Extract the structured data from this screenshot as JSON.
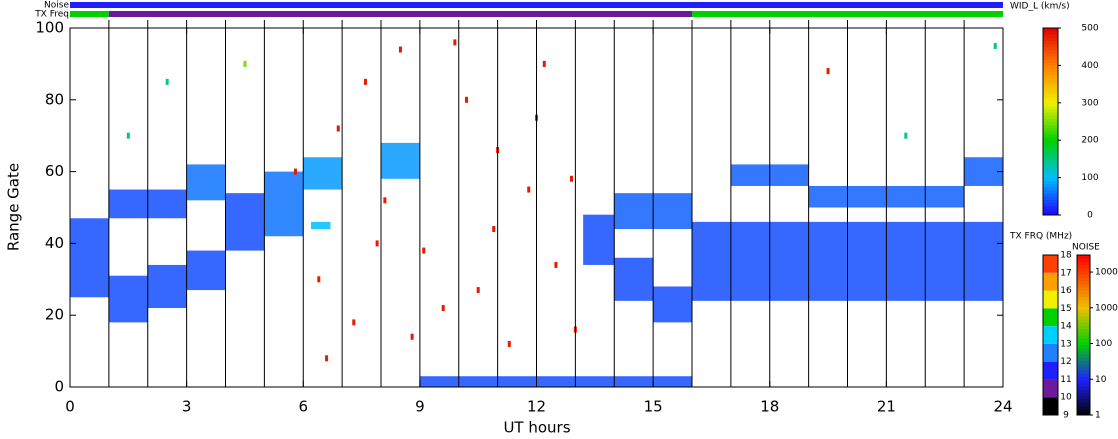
{
  "chart_data": {
    "type": "range-time",
    "x_label": "UT hours",
    "y_label": "Range Gate",
    "xlim": [
      0,
      24
    ],
    "xticks": [
      0,
      3,
      6,
      9,
      12,
      15,
      18,
      21,
      24
    ],
    "ylim": [
      0,
      100
    ],
    "yticks": [
      0,
      20,
      40,
      60,
      80,
      100
    ],
    "hour_lines": [
      1,
      2,
      3,
      4,
      5,
      6,
      7,
      8,
      9,
      10,
      11,
      12,
      13,
      14,
      15,
      16,
      17,
      18,
      19,
      20,
      21,
      22,
      23
    ],
    "noise_strip_label": "Noise",
    "tx_strip_label": "TX Freq",
    "noise_strip": [
      {
        "x0": 0,
        "x1": 24,
        "noise": 10
      }
    ],
    "tx_strip": [
      {
        "x0": 0,
        "x1": 1,
        "freq": 14.5
      },
      {
        "x0": 1,
        "x1": 16,
        "freq": 10.5
      },
      {
        "x0": 16,
        "x1": 24,
        "freq": 14.5
      }
    ],
    "echo_bands": [
      {
        "x0": 0,
        "x1": 1,
        "g0": 25,
        "g1": 47,
        "width": 40
      },
      {
        "x0": 1,
        "x1": 2,
        "g0": 18,
        "g1": 31,
        "width": 40
      },
      {
        "x0": 2,
        "x1": 3,
        "g0": 22,
        "g1": 34,
        "width": 40
      },
      {
        "x0": 3,
        "x1": 4,
        "g0": 27,
        "g1": 38,
        "width": 40
      },
      {
        "x0": 1,
        "x1": 3,
        "g0": 47,
        "g1": 55,
        "width": 40
      },
      {
        "x0": 3,
        "x1": 4,
        "g0": 52,
        "g1": 62,
        "width": 60
      },
      {
        "x0": 4,
        "x1": 5,
        "g0": 38,
        "g1": 54,
        "width": 40
      },
      {
        "x0": 5,
        "x1": 6,
        "g0": 42,
        "g1": 60,
        "width": 60
      },
      {
        "x0": 6,
        "x1": 7,
        "g0": 55,
        "g1": 64,
        "width": 80
      },
      {
        "x0": 8,
        "x1": 9,
        "g0": 58,
        "g1": 68,
        "width": 80
      },
      {
        "x0": 13.2,
        "x1": 14,
        "g0": 34,
        "g1": 48,
        "width": 40
      },
      {
        "x0": 14,
        "x1": 15,
        "g0": 24,
        "g1": 36,
        "width": 40
      },
      {
        "x0": 15,
        "x1": 16,
        "g0": 18,
        "g1": 28,
        "width": 40
      },
      {
        "x0": 14,
        "x1": 16,
        "g0": 44,
        "g1": 54,
        "width": 50
      },
      {
        "x0": 16,
        "x1": 24,
        "g0": 24,
        "g1": 46,
        "width": 40
      },
      {
        "x0": 17,
        "x1": 19,
        "g0": 56,
        "g1": 62,
        "width": 50
      },
      {
        "x0": 19,
        "x1": 23,
        "g0": 50,
        "g1": 56,
        "width": 50
      },
      {
        "x0": 23,
        "x1": 24,
        "g0": 56,
        "g1": 64,
        "width": 50
      },
      {
        "x0": 9,
        "x1": 16,
        "g0": 0,
        "g1": 3,
        "width": 40
      },
      {
        "x0": 6.2,
        "x1": 6.7,
        "g0": 44,
        "g1": 46,
        "width": 100
      }
    ],
    "points": [
      {
        "x": 5.8,
        "g": 60,
        "width": 480
      },
      {
        "x": 6.4,
        "g": 30,
        "width": 480
      },
      {
        "x": 6.9,
        "g": 72,
        "width": 480
      },
      {
        "x": 7.3,
        "g": 18,
        "width": 480
      },
      {
        "x": 7.6,
        "g": 85,
        "width": 480
      },
      {
        "x": 8.1,
        "g": 52,
        "width": 480
      },
      {
        "x": 8.5,
        "g": 94,
        "width": 480
      },
      {
        "x": 9.1,
        "g": 38,
        "width": 480
      },
      {
        "x": 9.6,
        "g": 22,
        "width": 480
      },
      {
        "x": 10.2,
        "g": 80,
        "width": 480
      },
      {
        "x": 10.5,
        "g": 27,
        "width": 480
      },
      {
        "x": 11.0,
        "g": 66,
        "width": 480
      },
      {
        "x": 11.3,
        "g": 12,
        "width": 480
      },
      {
        "x": 11.8,
        "g": 55,
        "width": 480
      },
      {
        "x": 12.2,
        "g": 90,
        "width": 480
      },
      {
        "x": 12.5,
        "g": 34,
        "width": 480
      },
      {
        "x": 12.9,
        "g": 58,
        "width": 480
      },
      {
        "x": 13.0,
        "g": 16,
        "width": 480
      },
      {
        "x": 9.9,
        "g": 96,
        "width": 480
      },
      {
        "x": 7.9,
        "g": 40,
        "width": 480
      },
      {
        "x": 6.6,
        "g": 8,
        "width": 480
      },
      {
        "x": 10.9,
        "g": 44,
        "width": 480
      },
      {
        "x": 12.0,
        "g": 75,
        "width": 480
      },
      {
        "x": 8.8,
        "g": 14,
        "width": 480
      },
      {
        "x": 1.5,
        "g": 70,
        "width": 150
      },
      {
        "x": 2.5,
        "g": 85,
        "width": 150
      },
      {
        "x": 4.5,
        "g": 90,
        "width": 250
      },
      {
        "x": 19.5,
        "g": 88,
        "width": 480
      },
      {
        "x": 21.5,
        "g": 70,
        "width": 150
      },
      {
        "x": 23.8,
        "g": 95,
        "width": 150
      }
    ],
    "width_colorbar": {
      "title": "WID_L (km/s)",
      "lim": [
        0,
        500
      ],
      "ticks": [
        0,
        100,
        200,
        300,
        400,
        500
      ],
      "stops": [
        {
          "v": 0,
          "color": "#2000ff"
        },
        {
          "v": 100,
          "color": "#00bfff"
        },
        {
          "v": 200,
          "color": "#00d000"
        },
        {
          "v": 300,
          "color": "#f0f000"
        },
        {
          "v": 400,
          "color": "#ff8000"
        },
        {
          "v": 500,
          "color": "#e00000"
        }
      ]
    },
    "freq_colorbar": {
      "title": "TX FRQ (MHz)",
      "lim": [
        9,
        18
      ],
      "ticks": [
        9,
        10,
        11,
        12,
        13,
        14,
        15,
        16,
        17,
        18
      ],
      "colors": [
        "#000000",
        "#6a1a9a",
        "#2020ff",
        "#2080ff",
        "#00d0ff",
        "#00d000",
        "#f0f000",
        "#ffa000",
        "#ff4000"
      ]
    },
    "noise_colorbar": {
      "title": "NOISE",
      "lim": [
        1,
        30000
      ],
      "ticks": [
        1,
        10,
        100,
        1000,
        10000
      ],
      "stops": [
        {
          "v": 1,
          "color": "#000000"
        },
        {
          "v": 10,
          "color": "#2020ff"
        },
        {
          "v": 100,
          "color": "#00d000"
        },
        {
          "v": 1000,
          "color": "#f0c000"
        },
        {
          "v": 30000,
          "color": "#ff0000"
        }
      ]
    }
  }
}
